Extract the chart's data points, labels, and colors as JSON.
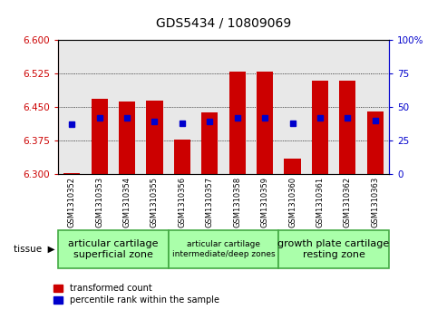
{
  "title": "GDS5434 / 10809069",
  "samples": [
    "GSM1310352",
    "GSM1310353",
    "GSM1310354",
    "GSM1310355",
    "GSM1310356",
    "GSM1310357",
    "GSM1310358",
    "GSM1310359",
    "GSM1310360",
    "GSM1310361",
    "GSM1310362",
    "GSM1310363"
  ],
  "transformed_counts": [
    6.302,
    6.468,
    6.462,
    6.465,
    6.378,
    6.438,
    6.528,
    6.528,
    6.335,
    6.508,
    6.508,
    6.44
  ],
  "percentile_ranks": [
    37,
    42,
    42,
    39,
    38,
    39,
    42,
    42,
    38,
    42,
    42,
    40
  ],
  "ylim_left": [
    6.3,
    6.6
  ],
  "ylim_right": [
    0,
    100
  ],
  "yticks_left": [
    6.3,
    6.375,
    6.45,
    6.525,
    6.6
  ],
  "yticks_right": [
    0,
    25,
    50,
    75,
    100
  ],
  "tissue_groups": [
    {
      "label": "articular cartilage\nsuperficial zone",
      "start": 0,
      "end": 4
    },
    {
      "label": "articular cartilage\nintermediate/deep zones",
      "start": 4,
      "end": 8
    },
    {
      "label": "growth plate cartilage\nresting zone",
      "start": 8,
      "end": 12
    }
  ],
  "tissue_group_color": "#aaffaa",
  "tissue_group_edge": "#44aa44",
  "bar_color": "#cc0000",
  "percentile_color": "#0000cc",
  "bar_width": 0.6,
  "base_value": 6.3,
  "legend_red_label": "transformed count",
  "legend_blue_label": "percentile rank within the sample",
  "tissue_label": "tissue",
  "background_color": "#ffffff",
  "plot_bg_color": "#e8e8e8",
  "left_axis_color": "#cc0000",
  "right_axis_color": "#0000cc"
}
